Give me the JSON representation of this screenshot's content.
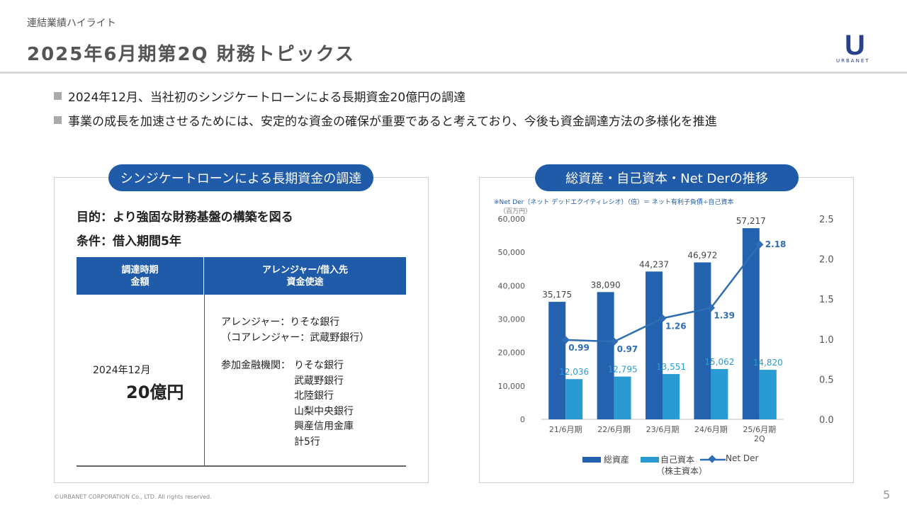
{
  "header": {
    "section": "連結業績ハイライト",
    "title": "2025年6月期第2Q 財務トピックス",
    "logo_text": "URBANET"
  },
  "bullets": [
    "2024年12月、当社初のシンジケートローンによる長期資金20億円の調達",
    "事業の成長を加速させるためには、安定的な資金の確保が重要であると考えており、今後も資金調達方法の多様化を推進"
  ],
  "left_panel": {
    "title": "シンジケートローンによる長期資金の調達",
    "purpose": "目的：より強固な財務基盤の構築を図る",
    "condition": "条件：借入期間5年",
    "table": {
      "col1_header": [
        "調達時期",
        "金額"
      ],
      "col2_header": [
        "アレンジャー/借入先",
        "資金使途"
      ],
      "date": "2024年12月",
      "amount": "20億円",
      "arranger": "アレンジャー：りそな銀行",
      "co_arranger": "（コアレンジャー：武蔵野銀行）",
      "participants_label": "参加金融機関：",
      "participants": [
        "りそな銀行",
        "武蔵野銀行",
        "北陸銀行",
        "山梨中央銀行",
        "興産信用金庫",
        "計5行"
      ]
    }
  },
  "right_panel": {
    "title": "総資産・自己資本・Net Derの推移",
    "note": "※Net Der（ネット デッドエクイティレシオ）（倍）＝ ネット有利子負債÷自己資本",
    "unit": "（百万円）"
  },
  "chart_data": {
    "type": "bar",
    "categories": [
      "21/6月期",
      "22/6月期",
      "23/6月期",
      "24/6月期",
      "25/6月期\n2Q"
    ],
    "series": [
      {
        "name": "総資産",
        "type": "bar",
        "axis": "left",
        "color": "#2462b0",
        "values": [
          35175,
          38090,
          44237,
          46972,
          57217
        ],
        "labels": [
          "35,175",
          "38,090",
          "44,237",
          "46,972",
          "57,217"
        ]
      },
      {
        "name": "自己資本（株主資本）",
        "type": "bar",
        "axis": "left",
        "color": "#2a9bd2",
        "values": [
          12036,
          12795,
          13551,
          15062,
          14820
        ],
        "labels": [
          "12,036",
          "12,795",
          "13,551",
          "15,062",
          "14,820"
        ]
      },
      {
        "name": "Net Der",
        "type": "line",
        "axis": "right",
        "color": "#2f6db5",
        "values": [
          0.99,
          0.97,
          1.26,
          1.39,
          2.18
        ],
        "labels": [
          "0.99",
          "0.97",
          "1.26",
          "1.39",
          "2.18"
        ]
      }
    ],
    "y_left": {
      "min": 0,
      "max": 60000,
      "ticks": [
        "0",
        "10,000",
        "20,000",
        "30,000",
        "40,000",
        "50,000",
        "60,000"
      ]
    },
    "y_right": {
      "min": 0,
      "max": 2.5,
      "ticks": [
        "0.0",
        "0.5",
        "1.0",
        "1.5",
        "2.0",
        "2.5"
      ]
    },
    "legend": {
      "asset": "総資産",
      "equity_1": "自己資本",
      "equity_2": "（株主資本）",
      "netder": "Net Der",
      "position": "bottom"
    }
  },
  "footer": {
    "copyright": "©URBANET CORPORATION Co., LTD. All rights reserved.",
    "page": "5"
  }
}
